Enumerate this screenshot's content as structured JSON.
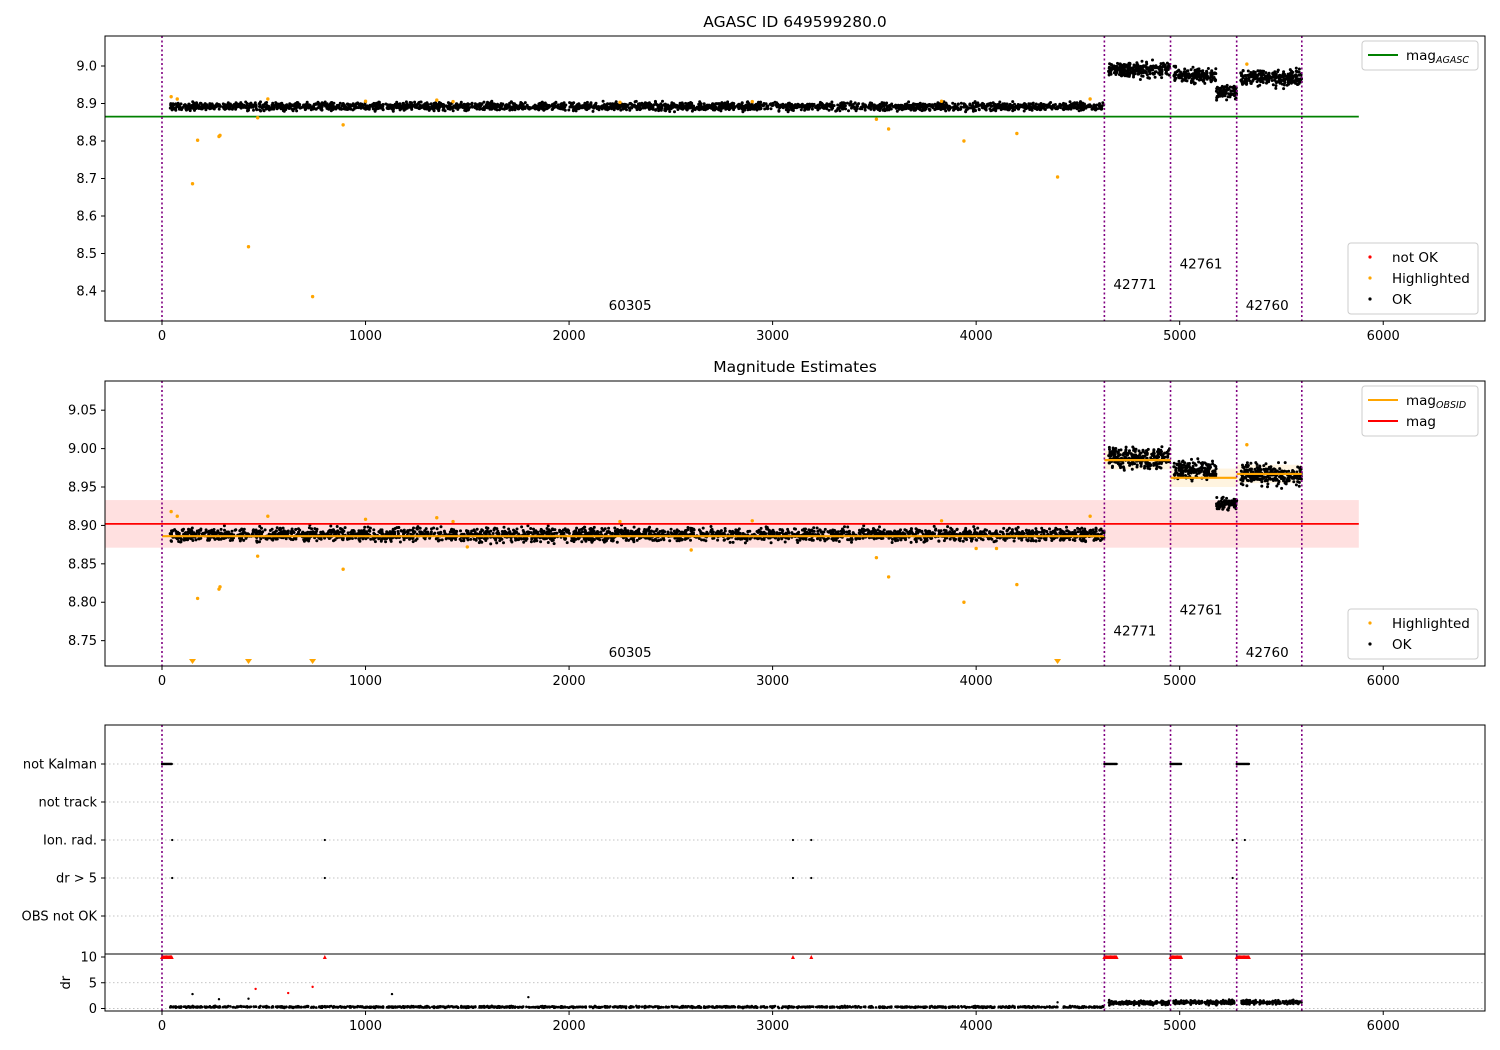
{
  "chart_data": [
    {
      "type": "scatter",
      "title": "AGASC ID 649599280.0",
      "xlim": [
        -280,
        6500
      ],
      "ylim": [
        8.32,
        9.08
      ],
      "xticks": [
        0,
        1000,
        2000,
        3000,
        4000,
        5000,
        6000
      ],
      "yticks": [
        8.4,
        8.5,
        8.6,
        8.7,
        8.8,
        8.9,
        9.0
      ],
      "ytick_labels": [
        "8.4",
        "8.5",
        "8.6",
        "8.7",
        "8.8",
        "8.9",
        "9.0"
      ],
      "obsid_boundaries": [
        0,
        4630,
        4955,
        5280,
        5600
      ],
      "obsid_labels": [
        {
          "text": "60305",
          "x": 2300,
          "y": 8.35
        },
        {
          "text": "42771",
          "x": 4780,
          "y": 8.405
        },
        {
          "text": "42761",
          "x": 5105,
          "y": 8.46
        },
        {
          "text": "42760",
          "x": 5430,
          "y": 8.35
        }
      ],
      "reference_line": {
        "name": "mag",
        "name_sub": "AGASC",
        "value": 8.865,
        "x_end": 5880,
        "color": "#008000"
      },
      "ok_segments": [
        {
          "x0": 40,
          "x1": 4630,
          "y_center": 8.892,
          "y_spread": 0.016,
          "count": 2600
        },
        {
          "x0": 4650,
          "x1": 4950,
          "y_center": 8.99,
          "y_spread": 0.03,
          "count": 260
        },
        {
          "x0": 4970,
          "x1": 5180,
          "y_center": 8.975,
          "y_spread": 0.028,
          "count": 180
        },
        {
          "x0": 5180,
          "x1": 5280,
          "y_center": 8.93,
          "y_spread": 0.025,
          "count": 90
        },
        {
          "x0": 5300,
          "x1": 5600,
          "y_center": 8.968,
          "y_spread": 0.03,
          "count": 260
        }
      ],
      "highlighted_points": [
        [
          45,
          8.918
        ],
        [
          75,
          8.912
        ],
        [
          150,
          8.686
        ],
        [
          175,
          8.802
        ],
        [
          280,
          8.812
        ],
        [
          285,
          8.815
        ],
        [
          425,
          8.518
        ],
        [
          470,
          8.862
        ],
        [
          520,
          8.912
        ],
        [
          740,
          8.385
        ],
        [
          890,
          8.843
        ],
        [
          1000,
          8.906
        ],
        [
          1350,
          8.909
        ],
        [
          1430,
          8.905
        ],
        [
          2250,
          8.903
        ],
        [
          2900,
          8.905
        ],
        [
          3510,
          8.858
        ],
        [
          3570,
          8.832
        ],
        [
          3830,
          8.906
        ],
        [
          3940,
          8.8
        ],
        [
          4200,
          8.82
        ],
        [
          4400,
          8.704
        ],
        [
          4560,
          8.912
        ],
        [
          5330,
          9.005
        ]
      ],
      "legends": [
        {
          "position": "upper-right",
          "entries": [
            {
              "label": "mag",
              "sub": "AGASC",
              "kind": "line",
              "color": "#008000"
            }
          ]
        },
        {
          "position": "lower-right",
          "entries": [
            {
              "label": "not OK",
              "kind": "dot",
              "color": "#ff0000"
            },
            {
              "label": "Highlighted",
              "kind": "dot",
              "color": "#ffa500"
            },
            {
              "label": "OK",
              "kind": "dot",
              "color": "#000000"
            }
          ]
        }
      ]
    },
    {
      "type": "scatter",
      "title": "Magnitude Estimates",
      "xlim": [
        -280,
        6500
      ],
      "ylim": [
        8.717,
        9.088
      ],
      "xticks": [
        0,
        1000,
        2000,
        3000,
        4000,
        5000,
        6000
      ],
      "yticks": [
        8.75,
        8.8,
        8.85,
        8.9,
        8.95,
        9.0,
        9.05
      ],
      "ytick_labels": [
        "8.75",
        "8.80",
        "8.85",
        "8.90",
        "8.95",
        "9.00",
        "9.05"
      ],
      "obsid_boundaries": [
        0,
        4630,
        4955,
        5280,
        5600
      ],
      "obsid_labels": [
        {
          "text": "60305",
          "x": 2300,
          "y": 8.729
        },
        {
          "text": "42771",
          "x": 4780,
          "y": 8.757
        },
        {
          "text": "42761",
          "x": 5105,
          "y": 8.784
        },
        {
          "text": "42760",
          "x": 5430,
          "y": 8.729
        }
      ],
      "mag_band": {
        "value": 8.902,
        "low": 8.871,
        "high": 8.933,
        "x_end": 5880,
        "color": "#ff0000"
      },
      "obsid_mags": [
        {
          "x0": 0,
          "x1": 4630,
          "value": 8.886
        },
        {
          "x0": 4630,
          "x1": 4955,
          "value": 8.985
        },
        {
          "x0": 4955,
          "x1": 5280,
          "value": 8.962
        },
        {
          "x0": 5280,
          "x1": 5600,
          "value": 8.967
        }
      ],
      "ok_segments": [
        {
          "x0": 40,
          "x1": 4630,
          "y_center": 8.888,
          "y_spread": 0.013,
          "count": 2600
        },
        {
          "x0": 4650,
          "x1": 4950,
          "y_center": 8.988,
          "y_spread": 0.02,
          "count": 260
        },
        {
          "x0": 4970,
          "x1": 5180,
          "y_center": 8.972,
          "y_spread": 0.018,
          "count": 180
        },
        {
          "x0": 5180,
          "x1": 5280,
          "y_center": 8.928,
          "y_spread": 0.012,
          "count": 90
        },
        {
          "x0": 5300,
          "x1": 5600,
          "y_center": 8.966,
          "y_spread": 0.02,
          "count": 260
        }
      ],
      "highlighted_points": [
        [
          45,
          8.918
        ],
        [
          75,
          8.912
        ],
        [
          175,
          8.805
        ],
        [
          280,
          8.817
        ],
        [
          285,
          8.82
        ],
        [
          470,
          8.86
        ],
        [
          520,
          8.912
        ],
        [
          890,
          8.843
        ],
        [
          1000,
          8.908
        ],
        [
          1350,
          8.91
        ],
        [
          1430,
          8.905
        ],
        [
          2250,
          8.905
        ],
        [
          2900,
          8.906
        ],
        [
          3510,
          8.858
        ],
        [
          3570,
          8.833
        ],
        [
          3830,
          8.906
        ],
        [
          3940,
          8.8
        ],
        [
          4200,
          8.823
        ],
        [
          4560,
          8.912
        ],
        [
          5330,
          9.005
        ],
        [
          1500,
          8.872
        ],
        [
          2600,
          8.868
        ],
        [
          4000,
          8.87
        ],
        [
          4100,
          8.87
        ]
      ],
      "below_range_points": [
        150,
        425,
        740,
        4400
      ],
      "legends": [
        {
          "position": "upper-right",
          "entries": [
            {
              "label": "mag",
              "sub": "OBSID",
              "kind": "line",
              "color": "#ffa500"
            },
            {
              "label": "mag",
              "kind": "line",
              "color": "#ff0000"
            }
          ]
        },
        {
          "position": "lower-right",
          "entries": [
            {
              "label": "Highlighted",
              "kind": "dot",
              "color": "#ffa500"
            },
            {
              "label": "OK",
              "kind": "dot",
              "color": "#000000"
            }
          ]
        }
      ]
    },
    {
      "type": "scatter",
      "title": "",
      "xlim": [
        -280,
        6500
      ],
      "xticks": [
        0,
        1000,
        2000,
        3000,
        4000,
        5000,
        6000
      ],
      "obsid_boundaries": [
        0,
        4630,
        4955,
        5280,
        5600
      ],
      "flag_categories": [
        "not Kalman",
        "not track",
        "Ion. rad.",
        "dr > 5",
        "OBS not OK"
      ],
      "flag_points": {
        "not Kalman": {
          "ranges": [
            [
              0,
              50
            ],
            [
              4630,
              4690
            ],
            [
              4955,
              5010
            ],
            [
              5280,
              5340
            ]
          ],
          "points": []
        },
        "not track": {
          "ranges": [],
          "points": []
        },
        "Ion. rad.": {
          "ranges": [],
          "points": [
            50,
            800,
            3100,
            3190,
            5260,
            5320
          ]
        },
        "dr > 5": {
          "ranges": [],
          "points": [
            50,
            800,
            3100,
            3190,
            5260
          ]
        },
        "OBS not OK": {
          "ranges": [],
          "points": []
        }
      },
      "dr_panel": {
        "ylabel": "dr",
        "ylim": [
          -0.5,
          10.5
        ],
        "yticks": [
          0,
          5,
          10
        ],
        "ytick_labels": [
          "0",
          "5",
          "10"
        ],
        "clipped_ranges": [
          [
            0,
            50
          ],
          [
            4630,
            4690
          ],
          [
            4955,
            5010
          ],
          [
            5280,
            5340
          ]
        ],
        "clipped_points": [
          800,
          3100,
          3190
        ],
        "red_points": [
          [
            460,
            3.8
          ],
          [
            620,
            3.0
          ],
          [
            740,
            4.2
          ]
        ],
        "outlier_points": [
          [
            150,
            2.8
          ],
          [
            280,
            1.8
          ],
          [
            425,
            1.9
          ],
          [
            1130,
            2.8
          ],
          [
            1800,
            2.2
          ],
          [
            4400,
            1.2
          ]
        ],
        "segments": [
          {
            "x0": 40,
            "x1": 4630,
            "y_center": 0.3,
            "y_spread": 0.25,
            "count": 1400
          },
          {
            "x0": 4650,
            "x1": 4950,
            "y_center": 1.1,
            "y_spread": 0.6,
            "count": 180
          },
          {
            "x0": 4970,
            "x1": 5270,
            "y_center": 1.2,
            "y_spread": 0.6,
            "count": 180
          },
          {
            "x0": 5300,
            "x1": 5600,
            "y_center": 1.2,
            "y_spread": 0.6,
            "count": 180
          }
        ]
      }
    }
  ]
}
